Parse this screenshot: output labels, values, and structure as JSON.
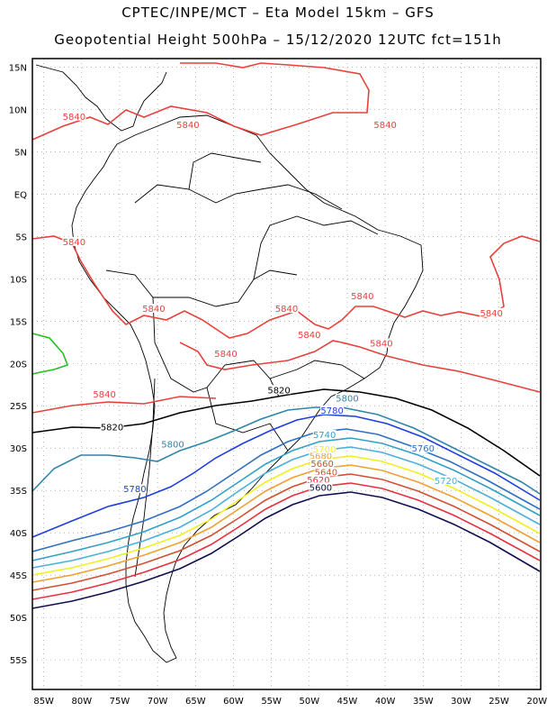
{
  "header": {
    "line1": "CPTEC/INPE/MCT –  Eta Model 15km – GFS",
    "line2": "Geopotential Height 500hPa – 15/12/2020 12UTC fct=151h"
  },
  "axes": {
    "lat_labels": [
      "15N",
      "10N",
      "5N",
      "EQ",
      "5S",
      "10S",
      "15S",
      "20S",
      "25S",
      "30S",
      "35S",
      "40S",
      "45S",
      "50S",
      "55S"
    ],
    "lat_values": [
      15,
      10,
      5,
      0,
      -5,
      -10,
      -15,
      -20,
      -25,
      -30,
      -35,
      -40,
      -45,
      -50,
      -55
    ],
    "lon_labels": [
      "85W",
      "80W",
      "75W",
      "70W",
      "65W",
      "60W",
      "55W",
      "50W",
      "45W",
      "40W",
      "35W",
      "30W",
      "25W",
      "20W"
    ],
    "lon_values": [
      -85,
      -80,
      -75,
      -70,
      -65,
      -60,
      -55,
      -50,
      -45,
      -40,
      -35,
      -30,
      -25,
      -20
    ]
  },
  "colors": {
    "c5840": "#e8413c",
    "c5820": "#000000",
    "c5800": "#2e86a8",
    "c5780": "#1f3fdc",
    "c5760": "#3070c0",
    "c5740": "#30a0c8",
    "c5720": "#4ab0d8",
    "c5700": "#f0f020",
    "c5680": "#f0a030",
    "c5660": "#d05030",
    "c5620": "#e83040",
    "c5600": "#101050",
    "extra": "#20c020"
  },
  "contour_labels": [
    {
      "text": "5840",
      "lon": -81,
      "lat": 9.0,
      "color": "c5840"
    },
    {
      "text": "5840",
      "lon": -66,
      "lat": 8.0,
      "color": "c5840"
    },
    {
      "text": "5840",
      "lon": -40,
      "lat": 8.0,
      "color": "c5840"
    },
    {
      "text": "5840",
      "lon": -81,
      "lat": -5.8,
      "color": "c5840"
    },
    {
      "text": "5840",
      "lon": -70.5,
      "lat": -13.7,
      "color": "c5840"
    },
    {
      "text": "5840",
      "lon": -53,
      "lat": -13.7,
      "color": "c5840"
    },
    {
      "text": "5840",
      "lon": -43,
      "lat": -12.2,
      "color": "c5840"
    },
    {
      "text": "5840",
      "lon": -26,
      "lat": -14.2,
      "color": "c5840"
    },
    {
      "text": "5840",
      "lon": -50,
      "lat": -16.8,
      "color": "c5840"
    },
    {
      "text": "5840",
      "lon": -40.5,
      "lat": -17.8,
      "color": "c5840"
    },
    {
      "text": "5840",
      "lon": -61,
      "lat": -19.0,
      "color": "c5840"
    },
    {
      "text": "5840",
      "lon": -77,
      "lat": -23.8,
      "color": "c5840"
    },
    {
      "text": "5820",
      "lon": -54,
      "lat": -23.3,
      "color": "c5820"
    },
    {
      "text": "5820",
      "lon": -76,
      "lat": -27.7,
      "color": "c5820"
    },
    {
      "text": "5800",
      "lon": -45,
      "lat": -24.3,
      "color": "c5800"
    },
    {
      "text": "5780",
      "lon": -47,
      "lat": -25.7,
      "color": "c5780"
    },
    {
      "text": "5800",
      "lon": -68,
      "lat": -29.7,
      "color": "c5800"
    },
    {
      "text": "5740",
      "lon": -48,
      "lat": -28.6,
      "color": "c5740"
    },
    {
      "text": "5760",
      "lon": -35,
      "lat": -30.2,
      "color": "c5760"
    },
    {
      "text": "5680",
      "lon": -48.5,
      "lat": -31.1,
      "color": "c5680"
    },
    {
      "text": "5700",
      "lon": -48,
      "lat": -30.3,
      "color": "c5700"
    },
    {
      "text": "5660",
      "lon": -48.3,
      "lat": -32.0,
      "color": "c5660"
    },
    {
      "text": "5640",
      "lon": -47.8,
      "lat": -33.0,
      "color": "c5660"
    },
    {
      "text": "5620",
      "lon": -48.8,
      "lat": -33.9,
      "color": "c5620"
    },
    {
      "text": "5600",
      "lon": -48.5,
      "lat": -34.8,
      "color": "c5600"
    },
    {
      "text": "5720",
      "lon": -32,
      "lat": -34.0,
      "color": "c5720"
    },
    {
      "text": "5780",
      "lon": -73,
      "lat": -35.0,
      "color": "c5780"
    }
  ]
}
